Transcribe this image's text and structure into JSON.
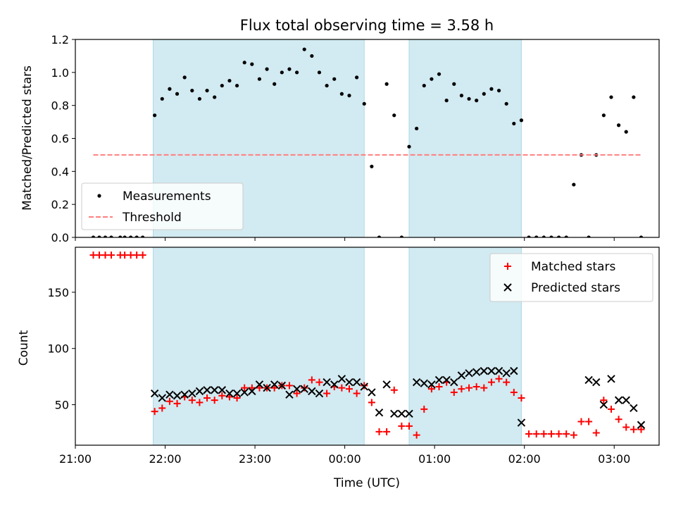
{
  "chart_data": [
    {
      "type": "scatter",
      "title": "Flux total observing time = 3.58 h",
      "ylabel": "Matched/Predicted stars",
      "xlabel": "",
      "xlim": [
        "21:00",
        "03:30"
      ],
      "ylim": [
        0.0,
        1.2
      ],
      "y_ticks": [
        "0.0",
        "0.2",
        "0.4",
        "0.6",
        "0.8",
        "1.0",
        "1.2"
      ],
      "shaded_ranges": [
        [
          "21:52",
          "00:13"
        ],
        [
          "00:43",
          "01:58"
        ]
      ],
      "shade_color": "#add8e6",
      "legend_position": "lower left",
      "series": [
        {
          "name": "Measurements",
          "marker": "dot",
          "color": "#000000",
          "points": [
            [
              "21:12",
              0.0
            ],
            [
              "21:16",
              0.0
            ],
            [
              "21:20",
              0.0
            ],
            [
              "21:24",
              0.0
            ],
            [
              "21:30",
              0.0
            ],
            [
              "21:33",
              0.0
            ],
            [
              "21:37",
              0.0
            ],
            [
              "21:41",
              0.0
            ],
            [
              "21:45",
              0.0
            ],
            [
              "21:53",
              0.74
            ],
            [
              "21:58",
              0.84
            ],
            [
              "22:03",
              0.9
            ],
            [
              "22:08",
              0.87
            ],
            [
              "22:13",
              0.97
            ],
            [
              "22:18",
              0.89
            ],
            [
              "22:23",
              0.84
            ],
            [
              "22:28",
              0.89
            ],
            [
              "22:33",
              0.85
            ],
            [
              "22:38",
              0.92
            ],
            [
              "22:43",
              0.95
            ],
            [
              "22:48",
              0.92
            ],
            [
              "22:53",
              1.06
            ],
            [
              "22:58",
              1.05
            ],
            [
              "23:03",
              0.96
            ],
            [
              "23:08",
              1.02
            ],
            [
              "23:13",
              0.93
            ],
            [
              "23:18",
              1.0
            ],
            [
              "23:23",
              1.02
            ],
            [
              "23:28",
              1.0
            ],
            [
              "23:33",
              1.14
            ],
            [
              "23:38",
              1.1
            ],
            [
              "23:43",
              1.0
            ],
            [
              "23:48",
              0.92
            ],
            [
              "23:53",
              0.96
            ],
            [
              "23:58",
              0.87
            ],
            [
              "00:03",
              0.86
            ],
            [
              "00:08",
              0.97
            ],
            [
              "00:13",
              0.81
            ],
            [
              "00:18",
              0.43
            ],
            [
              "00:23",
              0.0
            ],
            [
              "00:28",
              0.93
            ],
            [
              "00:33",
              0.74
            ],
            [
              "00:38",
              0.0
            ],
            [
              "00:43",
              0.55
            ],
            [
              "00:48",
              0.66
            ],
            [
              "00:53",
              0.92
            ],
            [
              "00:58",
              0.96
            ],
            [
              "01:03",
              0.99
            ],
            [
              "01:08",
              0.83
            ],
            [
              "01:13",
              0.93
            ],
            [
              "01:18",
              0.86
            ],
            [
              "01:23",
              0.84
            ],
            [
              "01:28",
              0.83
            ],
            [
              "01:33",
              0.87
            ],
            [
              "01:38",
              0.9
            ],
            [
              "01:43",
              0.89
            ],
            [
              "01:48",
              0.81
            ],
            [
              "01:53",
              0.69
            ],
            [
              "01:58",
              0.71
            ],
            [
              "02:03",
              0.0
            ],
            [
              "02:08",
              0.0
            ],
            [
              "02:13",
              0.0
            ],
            [
              "02:18",
              0.0
            ],
            [
              "02:23",
              0.0
            ],
            [
              "02:28",
              0.0
            ],
            [
              "02:33",
              0.32
            ],
            [
              "02:38",
              0.5
            ],
            [
              "02:43",
              0.0
            ],
            [
              "02:48",
              0.5
            ],
            [
              "02:53",
              0.74
            ],
            [
              "02:58",
              0.85
            ],
            [
              "03:03",
              0.68
            ],
            [
              "03:08",
              0.64
            ],
            [
              "03:13",
              0.85
            ],
            [
              "03:18",
              0.0
            ]
          ]
        },
        {
          "name": "Threshold",
          "style": "dashed-line",
          "color": "#ff7f7f",
          "points": [
            [
              "21:12",
              0.5
            ],
            [
              "03:18",
              0.5
            ]
          ]
        }
      ]
    },
    {
      "type": "scatter",
      "title": "",
      "xlabel": "Time (UTC)",
      "ylabel": "Count",
      "xlim": [
        "21:00",
        "03:30"
      ],
      "ylim": [
        14,
        190
      ],
      "x_ticks": [
        "21:00",
        "22:00",
        "23:00",
        "00:00",
        "01:00",
        "02:00",
        "03:00"
      ],
      "y_ticks": [
        "50",
        "100",
        "150"
      ],
      "shaded_ranges": [
        [
          "21:52",
          "00:13"
        ],
        [
          "00:43",
          "01:58"
        ]
      ],
      "shade_color": "#add8e6",
      "legend_position": "upper right",
      "series": [
        {
          "name": "Matched stars",
          "marker": "plus",
          "color": "#ff0000",
          "points": [
            [
              "21:12",
              183
            ],
            [
              "21:16",
              183
            ],
            [
              "21:20",
              183
            ],
            [
              "21:24",
              183
            ],
            [
              "21:30",
              183
            ],
            [
              "21:33",
              183
            ],
            [
              "21:37",
              183
            ],
            [
              "21:41",
              183
            ],
            [
              "21:45",
              183
            ],
            [
              "21:53",
              44
            ],
            [
              "21:58",
              47
            ],
            [
              "22:03",
              53
            ],
            [
              "22:08",
              51
            ],
            [
              "22:13",
              57
            ],
            [
              "22:18",
              54
            ],
            [
              "22:23",
              52
            ],
            [
              "22:28",
              56
            ],
            [
              "22:33",
              54
            ],
            [
              "22:38",
              58
            ],
            [
              "22:43",
              57
            ],
            [
              "22:48",
              56
            ],
            [
              "22:53",
              65
            ],
            [
              "22:58",
              65
            ],
            [
              "23:03",
              65
            ],
            [
              "23:08",
              65
            ],
            [
              "23:13",
              65
            ],
            [
              "23:18",
              67
            ],
            [
              "23:23",
              67
            ],
            [
              "23:28",
              60
            ],
            [
              "23:33",
              65
            ],
            [
              "23:38",
              72
            ],
            [
              "23:43",
              70
            ],
            [
              "23:48",
              60
            ],
            [
              "23:53",
              66
            ],
            [
              "23:58",
              65
            ],
            [
              "00:03",
              64
            ],
            [
              "00:08",
              60
            ],
            [
              "00:13",
              67
            ],
            [
              "00:18",
              52
            ],
            [
              "00:23",
              26
            ],
            [
              "00:28",
              26
            ],
            [
              "00:33",
              63
            ],
            [
              "00:38",
              31
            ],
            [
              "00:43",
              31
            ],
            [
              "00:48",
              23
            ],
            [
              "00:53",
              46
            ],
            [
              "00:58",
              64
            ],
            [
              "01:03",
              66
            ],
            [
              "01:08",
              70
            ],
            [
              "01:13",
              61
            ],
            [
              "01:18",
              64
            ],
            [
              "01:23",
              65
            ],
            [
              "01:28",
              66
            ],
            [
              "01:33",
              65
            ],
            [
              "01:38",
              70
            ],
            [
              "01:43",
              73
            ],
            [
              "01:48",
              70
            ],
            [
              "01:53",
              61
            ],
            [
              "01:58",
              56
            ],
            [
              "02:03",
              24
            ],
            [
              "02:08",
              24
            ],
            [
              "02:13",
              24
            ],
            [
              "02:18",
              24
            ],
            [
              "02:23",
              24
            ],
            [
              "02:28",
              24
            ],
            [
              "02:33",
              23
            ],
            [
              "02:38",
              35
            ],
            [
              "02:43",
              35
            ],
            [
              "02:48",
              25
            ],
            [
              "02:53",
              54
            ],
            [
              "02:58",
              46
            ],
            [
              "03:03",
              37
            ],
            [
              "03:08",
              30
            ],
            [
              "03:13",
              28
            ],
            [
              "03:18",
              28
            ]
          ]
        },
        {
          "name": "Predicted stars",
          "marker": "x",
          "color": "#000000",
          "points": [
            [
              "21:53",
              60
            ],
            [
              "21:58",
              56
            ],
            [
              "22:03",
              59
            ],
            [
              "22:08",
              58
            ],
            [
              "22:13",
              59
            ],
            [
              "22:18",
              60
            ],
            [
              "22:23",
              62
            ],
            [
              "22:28",
              63
            ],
            [
              "22:33",
              63
            ],
            [
              "22:38",
              63
            ],
            [
              "22:43",
              60
            ],
            [
              "22:48",
              60
            ],
            [
              "22:53",
              61
            ],
            [
              "22:58",
              62
            ],
            [
              "23:03",
              68
            ],
            [
              "23:08",
              65
            ],
            [
              "23:13",
              68
            ],
            [
              "23:18",
              67
            ],
            [
              "23:23",
              59
            ],
            [
              "23:28",
              64
            ],
            [
              "23:33",
              64
            ],
            [
              "23:38",
              62
            ],
            [
              "23:43",
              60
            ],
            [
              "23:48",
              70
            ],
            [
              "23:53",
              68
            ],
            [
              "23:58",
              73
            ],
            [
              "00:03",
              70
            ],
            [
              "00:08",
              70
            ],
            [
              "00:13",
              66
            ],
            [
              "00:18",
              61
            ],
            [
              "00:23",
              43
            ],
            [
              "00:28",
              68
            ],
            [
              "00:33",
              42
            ],
            [
              "00:38",
              42
            ],
            [
              "00:43",
              42
            ],
            [
              "00:48",
              70
            ],
            [
              "00:53",
              69
            ],
            [
              "00:58",
              68
            ],
            [
              "01:03",
              72
            ],
            [
              "01:08",
              72
            ],
            [
              "01:13",
              70
            ],
            [
              "01:18",
              76
            ],
            [
              "01:23",
              78
            ],
            [
              "01:28",
              79
            ],
            [
              "01:33",
              80
            ],
            [
              "01:38",
              80
            ],
            [
              "01:43",
              80
            ],
            [
              "01:48",
              78
            ],
            [
              "01:53",
              80
            ],
            [
              "01:58",
              34
            ],
            [
              "02:43",
              72
            ],
            [
              "02:48",
              70
            ],
            [
              "02:53",
              50
            ],
            [
              "02:58",
              73
            ],
            [
              "03:03",
              54
            ],
            [
              "03:08",
              54
            ],
            [
              "03:13",
              47
            ],
            [
              "03:18",
              32
            ]
          ]
        }
      ]
    }
  ]
}
